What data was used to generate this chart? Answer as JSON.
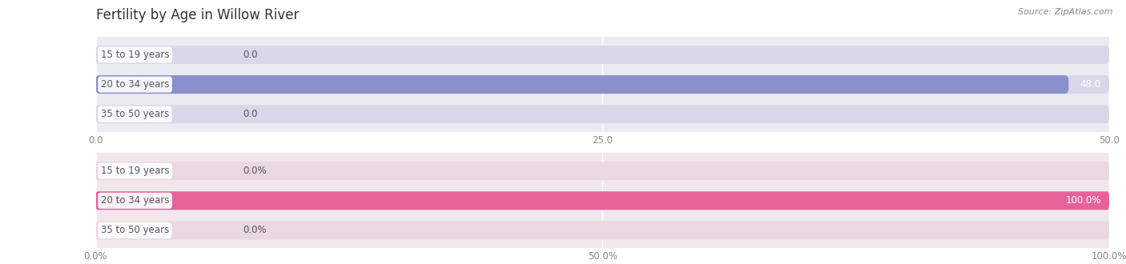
{
  "title": "Fertility by Age in Willow River",
  "source": "Source: ZipAtlas.com",
  "top_chart": {
    "categories": [
      "15 to 19 years",
      "20 to 34 years",
      "35 to 50 years"
    ],
    "values": [
      0.0,
      48.0,
      0.0
    ],
    "max_val": 50.0,
    "xticks": [
      0.0,
      25.0,
      50.0
    ],
    "xtick_labels": [
      "0.0",
      "25.0",
      "50.0"
    ],
    "bar_color": "#8b8fcc",
    "bar_bg_color": "#d8d8ea",
    "bg_color": "#ebebf2"
  },
  "bottom_chart": {
    "categories": [
      "15 to 19 years",
      "20 to 34 years",
      "35 to 50 years"
    ],
    "values": [
      0.0,
      100.0,
      0.0
    ],
    "max_val": 100.0,
    "xticks": [
      0.0,
      50.0,
      100.0
    ],
    "xtick_labels": [
      "0.0%",
      "50.0%",
      "100.0%"
    ],
    "bar_color": "#e8629a",
    "bar_bg_color": "#ead8e0",
    "bg_color": "#f2e8ec"
  },
  "label_color": "#555566",
  "bar_height": 0.62,
  "label_fontsize": 8.5,
  "tick_fontsize": 8.5,
  "title_fontsize": 12,
  "source_fontsize": 8
}
